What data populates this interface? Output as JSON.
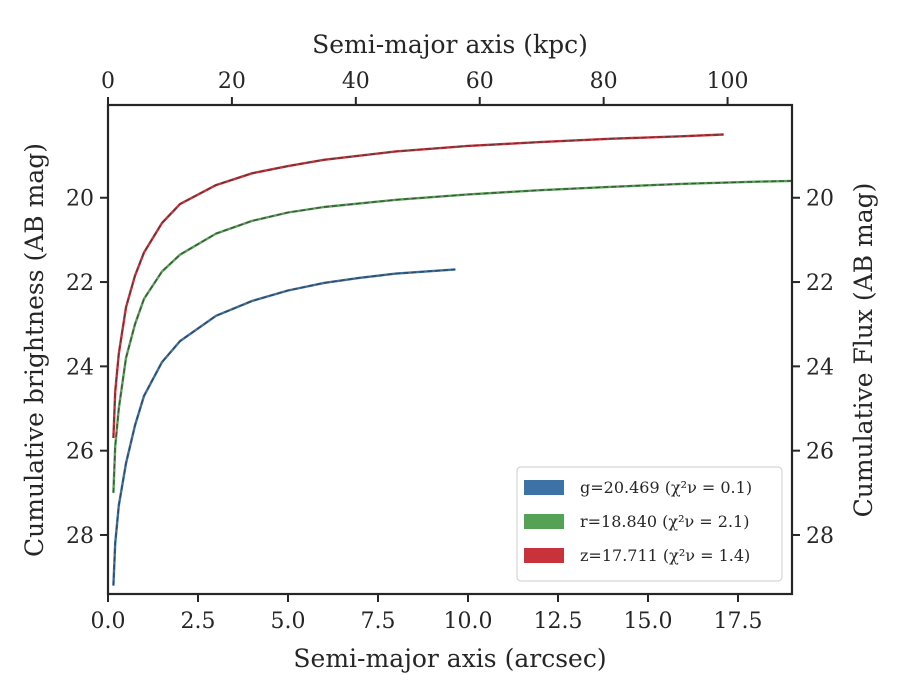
{
  "chart_data": {
    "type": "line",
    "xlabel": "Semi-major axis (arcsec)",
    "x2label": "Semi-major axis (kpc)",
    "ylabel": "Cumulative brightness (AB mag)",
    "y2label": "Cumulative Flux (AB mag)",
    "xlim": [
      0,
      19.0
    ],
    "x2lim": [
      0,
      110.4
    ],
    "ylim": [
      29.4,
      17.8
    ],
    "y_inverted": true,
    "xticks": [
      "0.0",
      "2.5",
      "5.0",
      "7.5",
      "10.0",
      "12.5",
      "15.0",
      "17.5"
    ],
    "xtick_values": [
      0,
      2.5,
      5,
      7.5,
      10,
      12.5,
      15,
      17.5
    ],
    "x2ticks": [
      "0",
      "20",
      "40",
      "60",
      "80",
      "100"
    ],
    "x2tick_values": [
      0,
      20,
      40,
      60,
      80,
      100
    ],
    "yticks": [
      "20",
      "22",
      "24",
      "26",
      "28"
    ],
    "ytick_values": [
      20,
      22,
      24,
      26,
      28
    ],
    "y2ticks": [
      "20",
      "22",
      "24",
      "26",
      "28"
    ],
    "grid": false,
    "legend_position": "lower-right",
    "series": [
      {
        "name": "g=20.469 (χ²ν = 0.1)",
        "color": "#3c72a5",
        "x": [
          0.15,
          0.2,
          0.3,
          0.5,
          0.75,
          1.0,
          1.5,
          2.0,
          3.0,
          4.0,
          5.0,
          6.0,
          7.0,
          8.0,
          9.0,
          9.65
        ],
        "y": [
          29.2,
          28.2,
          27.3,
          26.3,
          25.4,
          24.7,
          23.9,
          23.4,
          22.8,
          22.45,
          22.2,
          22.02,
          21.9,
          21.8,
          21.74,
          21.7
        ]
      },
      {
        "name": "r=18.840 (χ²ν = 2.1)",
        "color": "#55a155",
        "x": [
          0.15,
          0.2,
          0.3,
          0.5,
          0.75,
          1.0,
          1.5,
          2.0,
          3.0,
          4.0,
          5.0,
          6.0,
          8.0,
          10.0,
          12.0,
          14.0,
          16.0,
          18.0,
          19.0
        ],
        "y": [
          27.0,
          25.9,
          25.0,
          23.8,
          23.0,
          22.4,
          21.75,
          21.35,
          20.85,
          20.55,
          20.35,
          20.22,
          20.05,
          19.92,
          19.82,
          19.74,
          19.67,
          19.62,
          19.6
        ]
      },
      {
        "name": "z=17.711 (χ²ν = 1.4)",
        "color": "#c8323a",
        "x": [
          0.15,
          0.2,
          0.3,
          0.5,
          0.75,
          1.0,
          1.5,
          2.0,
          3.0,
          4.0,
          5.0,
          6.0,
          8.0,
          10.0,
          12.0,
          14.0,
          16.0,
          17.1
        ],
        "y": [
          25.7,
          24.6,
          23.7,
          22.6,
          21.85,
          21.3,
          20.6,
          20.15,
          19.7,
          19.42,
          19.25,
          19.1,
          18.9,
          18.77,
          18.68,
          18.6,
          18.54,
          18.5
        ]
      }
    ]
  }
}
